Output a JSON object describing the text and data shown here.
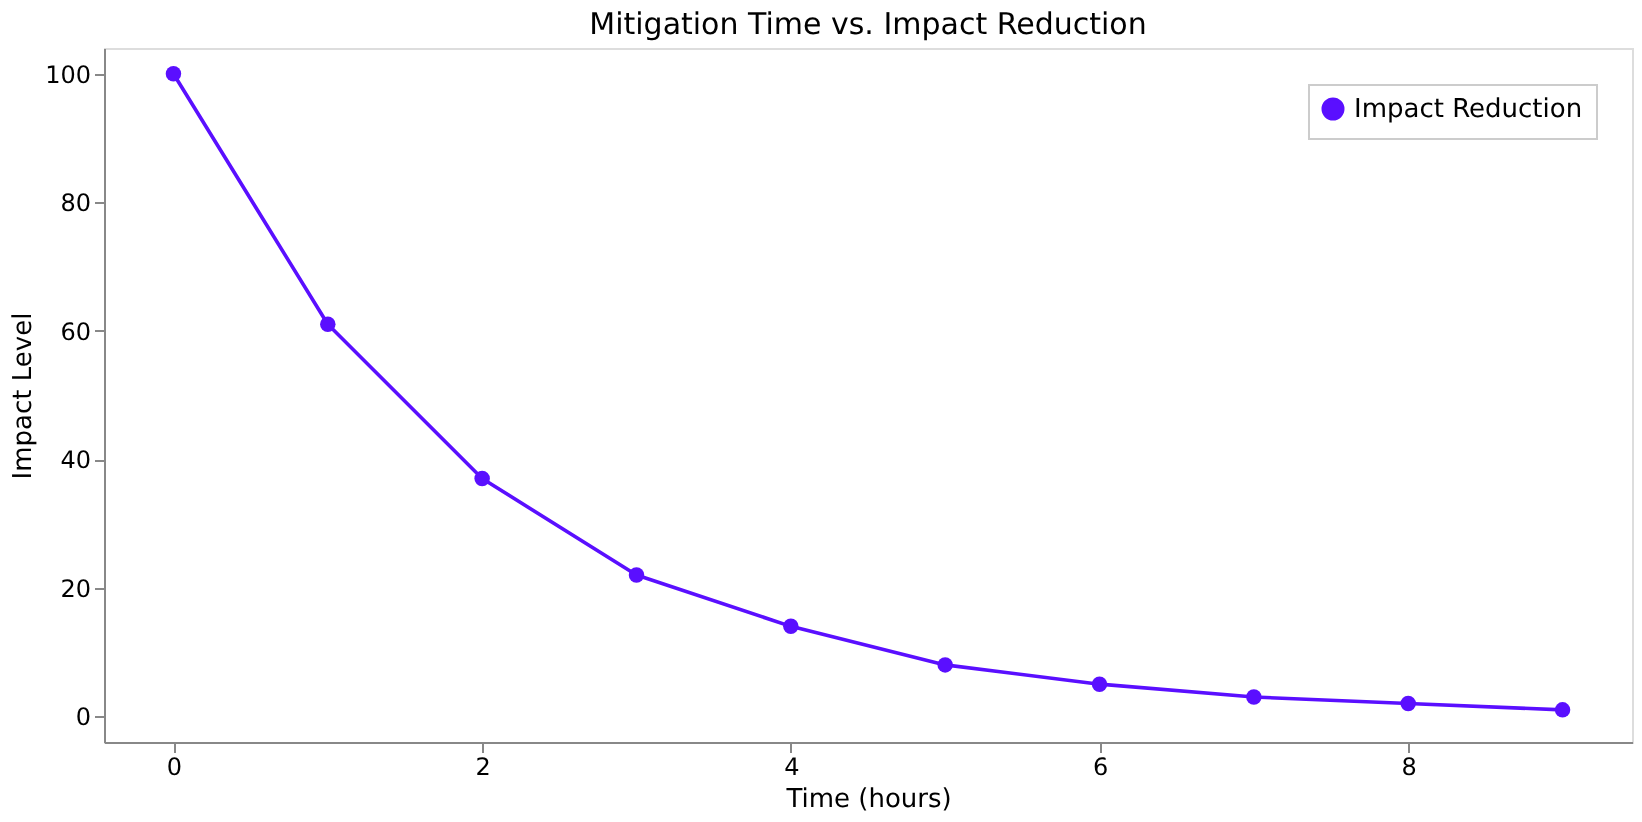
{
  "chart_data": {
    "type": "line",
    "title": "Mitigation Time vs. Impact Reduction",
    "xlabel": "Time (hours)",
    "ylabel": "Impact Level",
    "x": [
      0,
      1,
      2,
      3,
      4,
      5,
      6,
      7,
      8,
      9
    ],
    "series": [
      {
        "name": "Impact Reduction",
        "color": "#5a0fff",
        "values": [
          100,
          61,
          37,
          22,
          14,
          8,
          5,
          3,
          2,
          1
        ]
      }
    ],
    "xlim": [
      -0.45,
      9.45
    ],
    "ylim": [
      -4,
      104
    ],
    "xticks": [
      0,
      2,
      4,
      6,
      8
    ],
    "yticks": [
      0,
      20,
      40,
      60,
      80,
      100
    ],
    "grid": false,
    "legend": "top right",
    "marker": "circle",
    "line_style": "solid"
  }
}
